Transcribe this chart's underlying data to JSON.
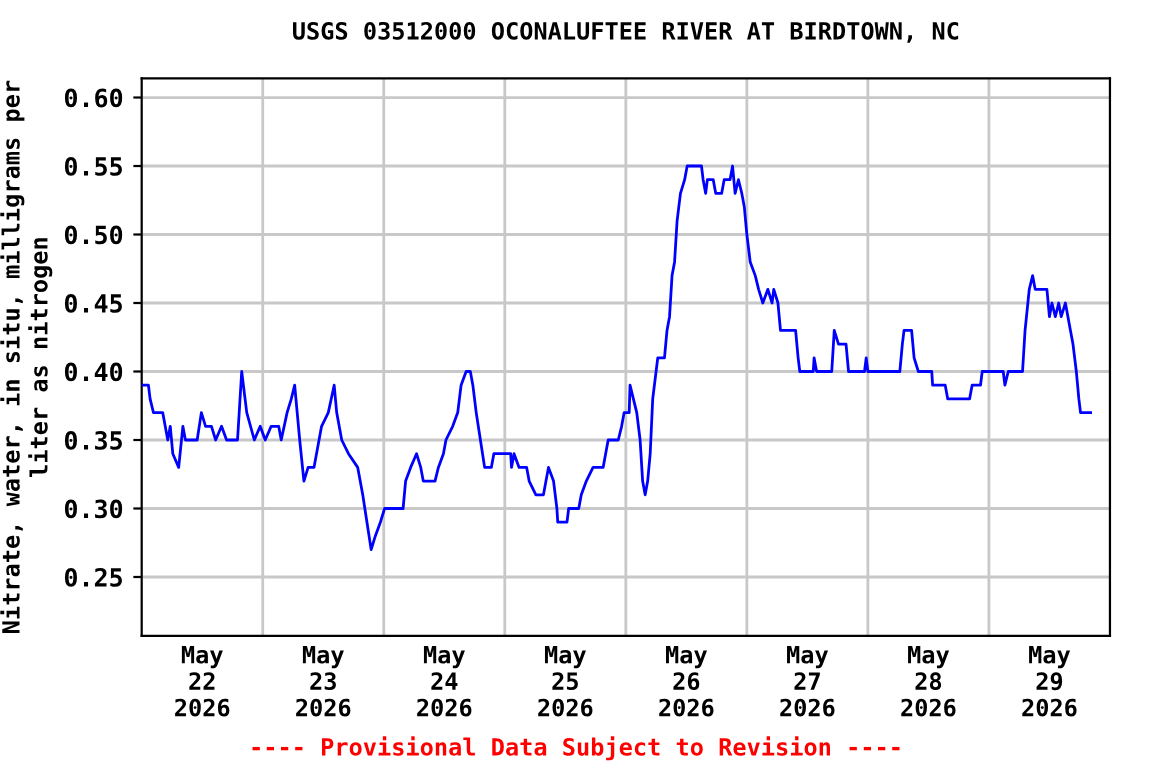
{
  "chart_data": {
    "type": "line",
    "title": "USGS 03512000 OCONALUFTEE RIVER AT BIRDTOWN, NC",
    "ylabel": "Nitrate, water, in situ, milligrams per\nliter as nitrogen",
    "annotations": [
      "---- Provisional Data Subject to Revision ----"
    ],
    "grid": true,
    "marker": "none",
    "line_style": "solid",
    "xlim": [
      "2026-05-22T00:00",
      "2026-05-30T00:00"
    ],
    "xticks": [
      {
        "value": "2026-05-22T12:00",
        "label": "May\n22\n2026"
      },
      {
        "value": "2026-05-23T00:00",
        "label": null
      },
      {
        "value": "2026-05-23T12:00",
        "label": "May\n23\n2026"
      },
      {
        "value": "2026-05-24T00:00",
        "label": null
      },
      {
        "value": "2026-05-24T12:00",
        "label": "May\n24\n2026"
      },
      {
        "value": "2026-05-25T00:00",
        "label": null
      },
      {
        "value": "2026-05-25T12:00",
        "label": "May\n25\n2026"
      },
      {
        "value": "2026-05-26T00:00",
        "label": null
      },
      {
        "value": "2026-05-26T12:00",
        "label": "May\n26\n2026"
      },
      {
        "value": "2026-05-27T00:00",
        "label": null
      },
      {
        "value": "2026-05-27T12:00",
        "label": "May\n27\n2026"
      },
      {
        "value": "2026-05-28T00:00",
        "label": null
      },
      {
        "value": "2026-05-28T12:00",
        "label": "May\n28\n2026"
      },
      {
        "value": "2026-05-29T00:00",
        "label": null
      },
      {
        "value": "2026-05-29T12:00",
        "label": "May\n29\n2026"
      }
    ],
    "ylim": [
      0.207,
      0.614
    ],
    "yticks": [
      {
        "value": 0.25,
        "label": "0.25"
      },
      {
        "value": 0.3,
        "label": "0.30"
      },
      {
        "value": 0.35,
        "label": "0.35"
      },
      {
        "value": 0.4,
        "label": "0.40"
      },
      {
        "value": 0.45,
        "label": "0.45"
      },
      {
        "value": 0.5,
        "label": "0.50"
      },
      {
        "value": 0.55,
        "label": "0.55"
      },
      {
        "value": 0.6,
        "label": "0.60"
      }
    ],
    "series": [
      {
        "color": "#0000ff",
        "x": [
          "2026-05-22T00:00",
          "2026-05-22T01:20",
          "2026-05-22T01:40",
          "2026-05-22T02:20",
          "2026-05-22T04:10",
          "2026-05-22T04:40",
          "2026-05-22T05:10",
          "2026-05-22T05:40",
          "2026-05-22T06:10",
          "2026-05-22T07:20",
          "2026-05-22T08:10",
          "2026-05-22T08:40",
          "2026-05-22T11:00",
          "2026-05-22T11:50",
          "2026-05-22T12:40",
          "2026-05-22T13:50",
          "2026-05-22T14:40",
          "2026-05-22T15:50",
          "2026-05-22T16:50",
          "2026-05-22T19:00",
          "2026-05-22T19:50",
          "2026-05-22T20:50",
          "2026-05-22T22:20",
          "2026-05-22T23:30",
          "2026-05-23T00:30",
          "2026-05-23T01:40",
          "2026-05-23T03:10",
          "2026-05-23T03:40",
          "2026-05-23T04:50",
          "2026-05-23T05:40",
          "2026-05-23T06:20",
          "2026-05-23T06:50",
          "2026-05-23T07:20",
          "2026-05-23T08:10",
          "2026-05-23T09:00",
          "2026-05-23T10:10",
          "2026-05-23T11:10",
          "2026-05-23T11:40",
          "2026-05-23T13:00",
          "2026-05-23T14:10",
          "2026-05-23T14:40",
          "2026-05-23T15:40",
          "2026-05-23T17:00",
          "2026-05-23T18:50",
          "2026-05-23T19:50",
          "2026-05-23T20:40",
          "2026-05-23T21:30",
          "2026-05-23T22:20",
          "2026-05-23T23:20",
          "2026-05-24T00:10",
          "2026-05-24T03:50",
          "2026-05-24T04:20",
          "2026-05-24T05:20",
          "2026-05-24T06:30",
          "2026-05-24T07:20",
          "2026-05-24T07:50",
          "2026-05-24T10:10",
          "2026-05-24T10:50",
          "2026-05-24T11:50",
          "2026-05-24T12:20",
          "2026-05-24T13:40",
          "2026-05-24T14:40",
          "2026-05-24T15:20",
          "2026-05-24T16:20",
          "2026-05-24T17:10",
          "2026-05-24T17:40",
          "2026-05-24T18:20",
          "2026-05-24T19:10",
          "2026-05-24T20:00",
          "2026-05-24T21:20",
          "2026-05-24T21:50",
          "2026-05-25T01:10",
          "2026-05-25T01:20",
          "2026-05-25T01:50",
          "2026-05-25T02:50",
          "2026-05-25T04:20",
          "2026-05-25T04:50",
          "2026-05-25T06:10",
          "2026-05-25T07:40",
          "2026-05-25T08:10",
          "2026-05-25T08:40",
          "2026-05-25T09:40",
          "2026-05-25T10:20",
          "2026-05-25T10:30",
          "2026-05-25T12:20",
          "2026-05-25T12:40",
          "2026-05-25T14:40",
          "2026-05-25T15:10",
          "2026-05-25T16:10",
          "2026-05-25T17:30",
          "2026-05-25T19:30",
          "2026-05-25T20:00",
          "2026-05-25T20:30",
          "2026-05-25T22:30",
          "2026-05-25T23:10",
          "2026-05-25T23:40",
          "2026-05-26T00:40",
          "2026-05-26T00:50",
          "2026-05-26T01:30",
          "2026-05-26T02:10",
          "2026-05-26T02:50",
          "2026-05-26T03:20",
          "2026-05-26T03:50",
          "2026-05-26T04:20",
          "2026-05-26T04:50",
          "2026-05-26T05:20",
          "2026-05-26T06:00",
          "2026-05-26T06:20",
          "2026-05-26T07:40",
          "2026-05-26T08:10",
          "2026-05-26T08:40",
          "2026-05-26T09:10",
          "2026-05-26T09:40",
          "2026-05-26T10:10",
          "2026-05-26T10:50",
          "2026-05-26T11:40",
          "2026-05-26T12:10",
          "2026-05-26T15:00",
          "2026-05-26T15:20",
          "2026-05-26T15:50",
          "2026-05-26T16:10",
          "2026-05-26T17:20",
          "2026-05-26T17:50",
          "2026-05-26T19:00",
          "2026-05-26T19:30",
          "2026-05-26T20:40",
          "2026-05-26T21:10",
          "2026-05-26T21:40",
          "2026-05-26T22:20",
          "2026-05-26T23:00",
          "2026-05-26T23:30",
          "2026-05-27T00:00",
          "2026-05-27T00:40",
          "2026-05-27T01:40",
          "2026-05-27T02:20",
          "2026-05-27T03:10",
          "2026-05-27T04:10",
          "2026-05-27T05:00",
          "2026-05-27T05:20",
          "2026-05-27T06:10",
          "2026-05-27T06:40",
          "2026-05-27T09:40",
          "2026-05-27T10:10",
          "2026-05-27T10:30",
          "2026-05-27T13:10",
          "2026-05-27T13:20",
          "2026-05-27T13:50",
          "2026-05-27T16:50",
          "2026-05-27T17:20",
          "2026-05-27T18:10",
          "2026-05-27T19:40",
          "2026-05-27T20:10",
          "2026-05-27T23:20",
          "2026-05-27T23:40",
          "2026-05-28T00:00",
          "2026-05-28T06:20",
          "2026-05-28T06:50",
          "2026-05-28T07:10",
          "2026-05-28T08:40",
          "2026-05-28T09:10",
          "2026-05-28T10:00",
          "2026-05-28T12:40",
          "2026-05-28T12:50",
          "2026-05-28T13:50",
          "2026-05-28T15:20",
          "2026-05-28T15:50",
          "2026-05-28T20:10",
          "2026-05-28T20:40",
          "2026-05-28T22:20",
          "2026-05-28T22:40",
          "2026-05-29T02:50",
          "2026-05-29T03:10",
          "2026-05-29T03:50",
          "2026-05-29T06:40",
          "2026-05-29T07:10",
          "2026-05-29T08:00",
          "2026-05-29T08:40",
          "2026-05-29T09:10",
          "2026-05-29T11:30",
          "2026-05-29T12:00",
          "2026-05-29T12:30",
          "2026-05-29T13:10",
          "2026-05-29T13:50",
          "2026-05-29T14:20",
          "2026-05-29T15:10",
          "2026-05-29T15:40",
          "2026-05-29T16:10",
          "2026-05-29T16:40",
          "2026-05-29T17:20",
          "2026-05-29T17:50",
          "2026-05-29T18:10",
          "2026-05-29T20:10"
        ],
        "values": [
          0.39,
          0.39,
          0.38,
          0.37,
          0.37,
          0.36,
          0.35,
          0.36,
          0.34,
          0.33,
          0.36,
          0.35,
          0.35,
          0.37,
          0.36,
          0.36,
          0.35,
          0.36,
          0.35,
          0.35,
          0.4,
          0.37,
          0.35,
          0.36,
          0.35,
          0.36,
          0.36,
          0.35,
          0.37,
          0.38,
          0.39,
          0.37,
          0.35,
          0.32,
          0.33,
          0.33,
          0.35,
          0.36,
          0.37,
          0.39,
          0.37,
          0.35,
          0.34,
          0.33,
          0.31,
          0.29,
          0.27,
          0.28,
          0.29,
          0.3,
          0.3,
          0.32,
          0.33,
          0.34,
          0.33,
          0.32,
          0.32,
          0.33,
          0.34,
          0.35,
          0.36,
          0.37,
          0.39,
          0.4,
          0.4,
          0.39,
          0.37,
          0.35,
          0.33,
          0.33,
          0.34,
          0.34,
          0.33,
          0.34,
          0.33,
          0.33,
          0.32,
          0.31,
          0.31,
          0.32,
          0.33,
          0.32,
          0.3,
          0.29,
          0.29,
          0.3,
          0.3,
          0.31,
          0.32,
          0.33,
          0.33,
          0.34,
          0.35,
          0.35,
          0.36,
          0.37,
          0.37,
          0.39,
          0.38,
          0.37,
          0.35,
          0.32,
          0.31,
          0.32,
          0.34,
          0.38,
          0.4,
          0.41,
          0.41,
          0.43,
          0.44,
          0.47,
          0.48,
          0.51,
          0.53,
          0.54,
          0.55,
          0.55,
          0.54,
          0.53,
          0.54,
          0.54,
          0.53,
          0.53,
          0.54,
          0.54,
          0.55,
          0.53,
          0.54,
          0.53,
          0.52,
          0.5,
          0.48,
          0.47,
          0.46,
          0.45,
          0.46,
          0.45,
          0.46,
          0.45,
          0.43,
          0.43,
          0.41,
          0.4,
          0.4,
          0.41,
          0.4,
          0.4,
          0.43,
          0.42,
          0.42,
          0.4,
          0.4,
          0.41,
          0.4,
          0.4,
          0.42,
          0.43,
          0.43,
          0.41,
          0.4,
          0.4,
          0.39,
          0.39,
          0.39,
          0.38,
          0.38,
          0.39,
          0.39,
          0.4,
          0.4,
          0.39,
          0.4,
          0.4,
          0.43,
          0.46,
          0.47,
          0.46,
          0.46,
          0.44,
          0.45,
          0.44,
          0.45,
          0.44,
          0.45,
          0.44,
          0.43,
          0.42,
          0.4,
          0.38,
          0.37,
          0.37
        ]
      }
    ]
  }
}
